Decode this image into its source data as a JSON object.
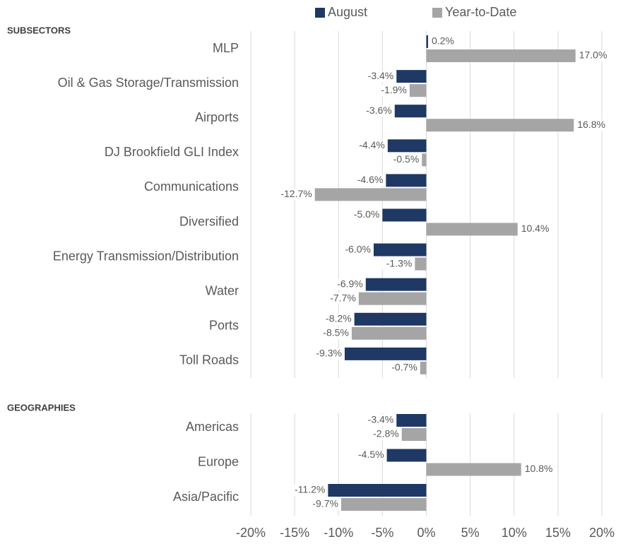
{
  "chart_data": {
    "type": "bar",
    "orientation": "horizontal",
    "series": [
      {
        "name": "August",
        "color": "#1f3864"
      },
      {
        "name": "Year-to-Date",
        "color": "#a5a5a5"
      }
    ],
    "xlim": [
      -20,
      20
    ],
    "xticks": [
      {
        "value": -20,
        "label": "-20%"
      },
      {
        "value": -15,
        "label": "-15%"
      },
      {
        "value": -10,
        "label": "-10%"
      },
      {
        "value": -5,
        "label": "-5%"
      },
      {
        "value": 0,
        "label": "0%"
      },
      {
        "value": 5,
        "label": "5%"
      },
      {
        "value": 10,
        "label": "10%"
      },
      {
        "value": 15,
        "label": "15%"
      },
      {
        "value": 20,
        "label": "20%"
      }
    ],
    "grid": true,
    "sections": [
      {
        "title": "SUBSECTORS",
        "categories": [
          "MLP",
          "Oil & Gas Storage/Transmission",
          "Airports",
          "DJ Brookfield GLI Index",
          "Communications",
          "Diversified",
          "Energy Transmission/Distribution",
          "Water",
          "Ports",
          "Toll Roads"
        ],
        "series": [
          {
            "values": [
              0.2,
              -3.4,
              -3.6,
              -4.4,
              -4.6,
              -5.0,
              -6.0,
              -6.9,
              -8.2,
              -9.3
            ],
            "value_labels": [
              "0.2%",
              "-3.4%",
              "-3.6%",
              "-4.4%",
              "-4.6%",
              "-5.0%",
              "-6.0%",
              "-6.9%",
              "-8.2%",
              "-9.3%"
            ]
          },
          {
            "values": [
              17.0,
              -1.9,
              16.8,
              -0.5,
              -12.7,
              10.4,
              -1.3,
              -7.7,
              -8.5,
              -0.7
            ],
            "value_labels": [
              "17.0%",
              "-1.9%",
              "16.8%",
              "-0.5%",
              "-12.7%",
              "10.4%",
              "-1.3%",
              "-7.7%",
              "-8.5%",
              "-0.7%"
            ]
          }
        ]
      },
      {
        "title": "GEOGRAPHIES",
        "categories": [
          "Americas",
          "Europe",
          "Asia/Pacific"
        ],
        "series": [
          {
            "values": [
              -3.4,
              -4.5,
              -11.2
            ],
            "value_labels": [
              "-3.4%",
              "-4.5%",
              "-11.2%"
            ]
          },
          {
            "values": [
              -2.8,
              10.8,
              -9.7
            ],
            "value_labels": [
              "-2.8%",
              "10.8%",
              "-9.7%"
            ]
          }
        ]
      }
    ]
  }
}
